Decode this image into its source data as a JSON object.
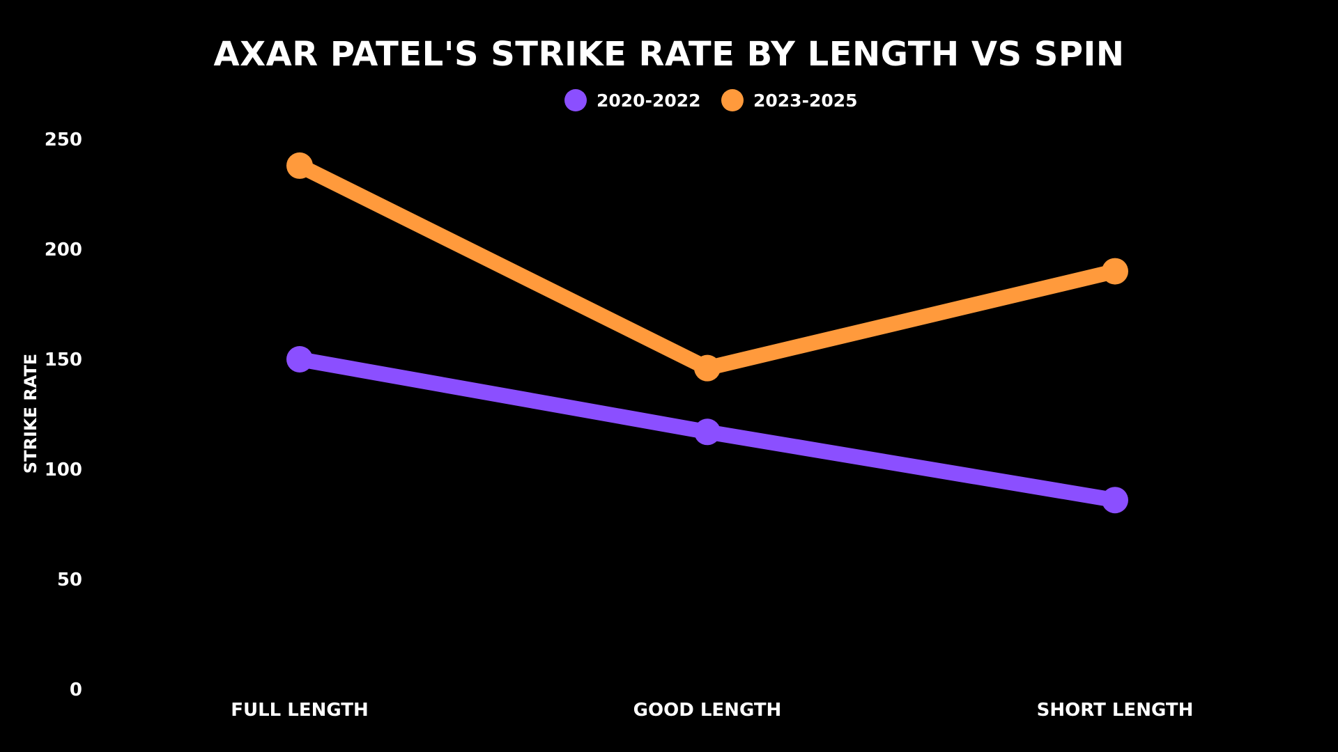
{
  "chart_data": {
    "type": "line",
    "title": "AXAR PATEL'S STRIKE RATE BY LENGTH VS SPIN",
    "xlabel": "",
    "ylabel": "STRIKE RATE",
    "categories": [
      "FULL LENGTH",
      "GOOD LENGTH",
      "SHORT LENGTH"
    ],
    "ylim": [
      0,
      250
    ],
    "yticks": [
      0,
      50,
      100,
      150,
      200,
      250
    ],
    "grid": false,
    "legend_position": "top-center",
    "series": [
      {
        "name": "2020-2022",
        "color": "#8B4FFF",
        "values": [
          150,
          117,
          86
        ]
      },
      {
        "name": "2023-2025",
        "color": "#FF9A3C",
        "values": [
          238,
          146,
          190
        ]
      }
    ]
  }
}
